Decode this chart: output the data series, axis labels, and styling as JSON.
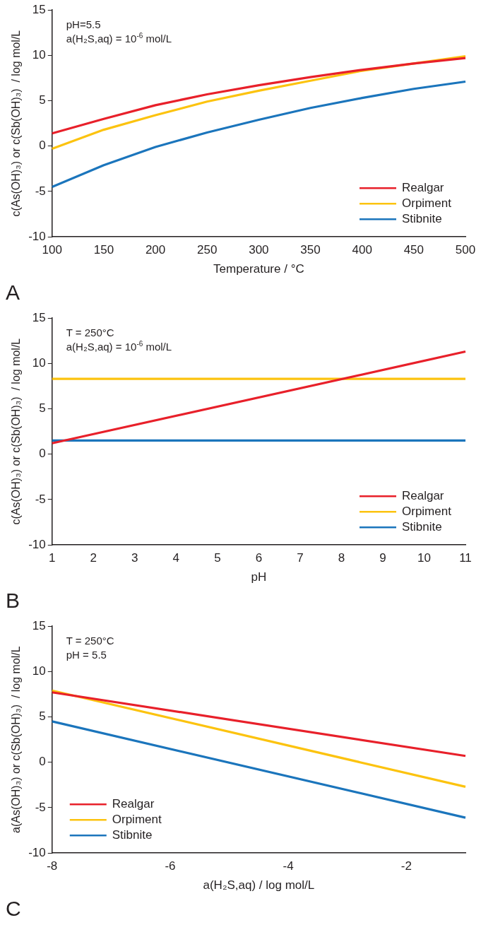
{
  "chart_data": [
    {
      "type": "line",
      "title": "A",
      "xlabel": "Temperature / °C",
      "ylabel": "c(As(OH)₃) or c(Sb(OH)₃)  / log mol/L",
      "x": [
        100,
        150,
        200,
        250,
        300,
        350,
        400,
        450,
        500
      ],
      "series": [
        {
          "name": "Realgar",
          "color": "#e8202a",
          "values": [
            1.4,
            3.0,
            4.5,
            5.7,
            6.7,
            7.6,
            8.4,
            9.1,
            9.7
          ]
        },
        {
          "name": "Orpiment",
          "color": "#fcc30f",
          "values": [
            -0.3,
            1.8,
            3.4,
            4.9,
            6.1,
            7.2,
            8.3,
            9.1,
            9.9
          ]
        },
        {
          "name": "Stibnite",
          "color": "#1b75bc",
          "values": [
            -4.5,
            -2.1,
            -0.1,
            1.5,
            2.9,
            4.2,
            5.3,
            6.3,
            7.1
          ]
        }
      ],
      "xlim": [
        100,
        500
      ],
      "xticks": [
        100,
        150,
        200,
        250,
        300,
        350,
        400,
        450,
        500
      ],
      "ylim": [
        -10,
        15
      ],
      "yticks": [
        -10,
        -5,
        0,
        5,
        10,
        15
      ],
      "annotations": [
        "pH=5.5",
        "a(H₂S,aq) = 10$^{-6}$ mol/L"
      ],
      "grid": false,
      "legend": "bottom right",
      "marker": "none",
      "line_style": "solid"
    },
    {
      "type": "line",
      "title": "B",
      "xlabel": "pH",
      "ylabel": "c(As(OH)₃) or c(Sb(OH)₃)  / log mol/L",
      "x": [
        1,
        11
      ],
      "series": [
        {
          "name": "Realgar",
          "color": "#e8202a",
          "values": [
            1.2,
            11.3
          ]
        },
        {
          "name": "Orpiment",
          "color": "#fcc30f",
          "values": [
            8.3,
            8.3
          ]
        },
        {
          "name": "Stibnite",
          "color": "#1b75bc",
          "values": [
            1.5,
            1.5
          ]
        }
      ],
      "xlim": [
        1,
        11
      ],
      "xticks": [
        1,
        2,
        3,
        4,
        5,
        6,
        7,
        8,
        9,
        10,
        11
      ],
      "ylim": [
        -10,
        15
      ],
      "yticks": [
        -10,
        -5,
        0,
        5,
        10,
        15
      ],
      "annotations": [
        "T = 250°C",
        "a(H₂S,aq) = 10$^{-6}$ mol/L"
      ],
      "grid": false,
      "legend": "bottom right",
      "marker": "none",
      "line_style": "solid"
    },
    {
      "type": "line",
      "title": "C",
      "xlabel": "a(H₂S,aq) / log mol/L",
      "ylabel": "a(As(OH)₃) or c(Sb(OH)₃)  / log mol/L",
      "x": [
        -8,
        -1
      ],
      "series": [
        {
          "name": "Realgar",
          "color": "#e8202a",
          "values": [
            7.7,
            0.7
          ]
        },
        {
          "name": "Orpiment",
          "color": "#fcc30f",
          "values": [
            7.9,
            -2.7
          ]
        },
        {
          "name": "Stibnite",
          "color": "#1b75bc",
          "values": [
            4.5,
            -6.1
          ]
        }
      ],
      "xlim": [
        -8,
        -1
      ],
      "xticks": [
        -8,
        -6,
        -4,
        -2
      ],
      "ylim": [
        -10,
        15
      ],
      "yticks": [
        -10,
        -5,
        0,
        5,
        10,
        15
      ],
      "annotations": [
        "T = 250°C",
        "pH = 5.5"
      ],
      "grid": false,
      "legend": "bottom left",
      "marker": "none",
      "line_style": "solid"
    }
  ]
}
